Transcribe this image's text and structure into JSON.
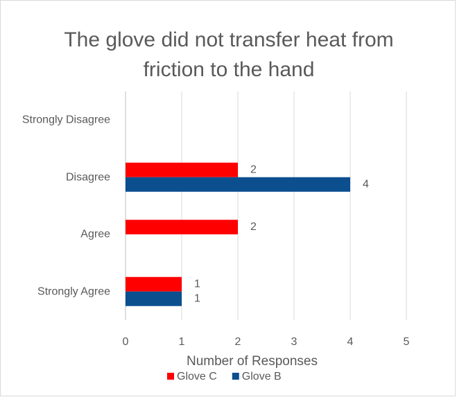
{
  "chart_data": {
    "type": "bar",
    "orientation": "horizontal",
    "title": "The glove did not transfer heat from friction to the hand",
    "categories": [
      "Strongly Disagree",
      "Disagree",
      "Agree",
      "Strongly Agree"
    ],
    "series": [
      {
        "name": "Glove C",
        "color": "#ff0000",
        "values": [
          null,
          2,
          2,
          1
        ]
      },
      {
        "name": "Glove B",
        "color": "#0b4f8f",
        "values": [
          null,
          4,
          null,
          1
        ]
      }
    ],
    "xlabel": "Number of Responses",
    "xlim": [
      0,
      5
    ],
    "xticks": [
      0,
      1,
      2,
      3,
      4,
      5
    ],
    "grid": true,
    "legend": "bottom"
  }
}
